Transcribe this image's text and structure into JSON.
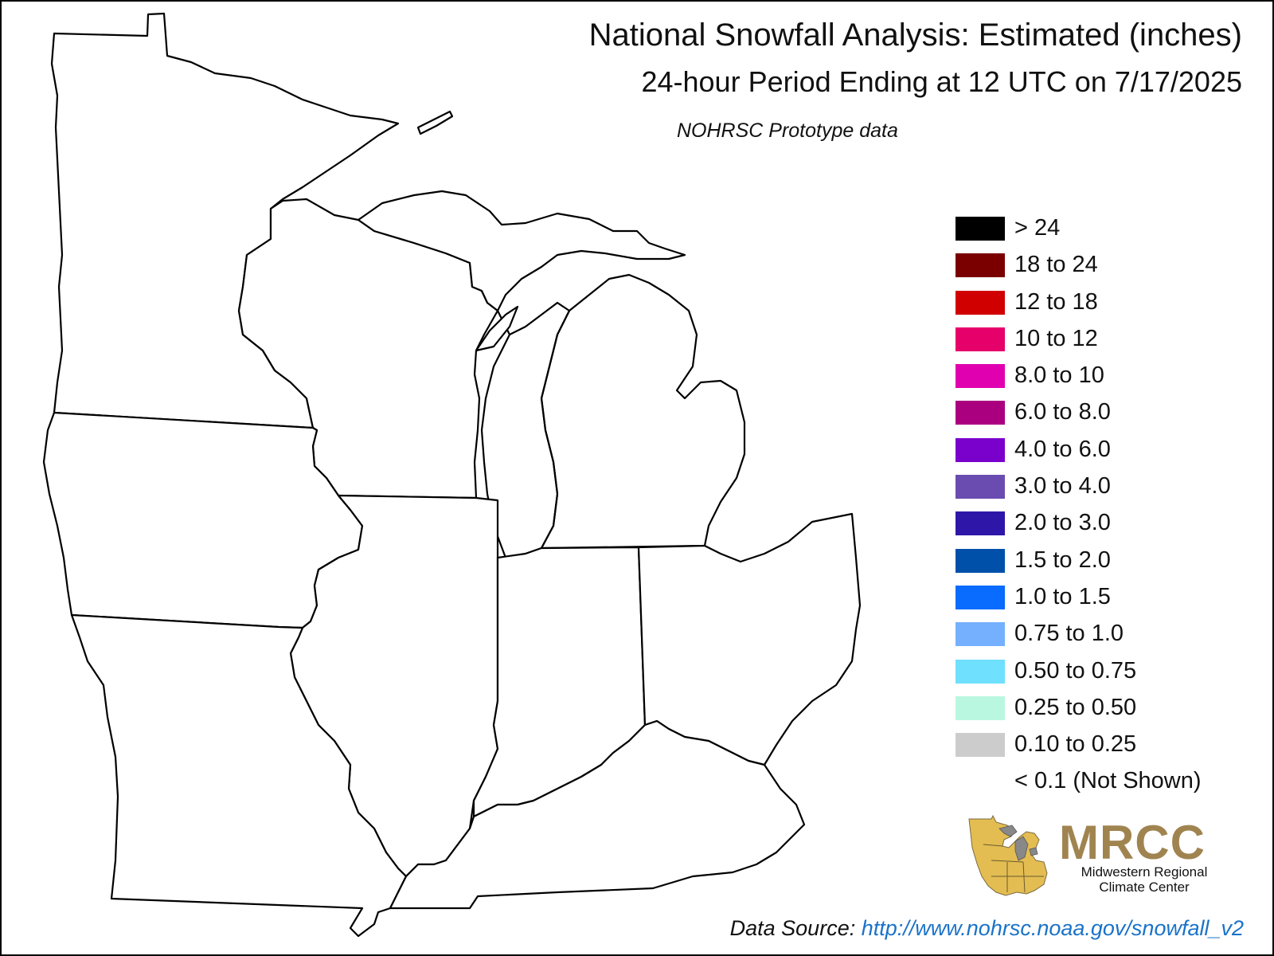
{
  "header": {
    "title": "National Snowfall Analysis: Estimated (inches)",
    "subtitle": "24-hour Period Ending at 12 UTC on 7/17/2025",
    "note": "NOHRSC Prototype data"
  },
  "map": {
    "states": [
      "Minnesota",
      "Wisconsin",
      "Michigan",
      "Iowa",
      "Illinois",
      "Indiana",
      "Ohio",
      "Missouri",
      "Kentucky"
    ],
    "fill_color": "#ffffff",
    "border_color": "#000000"
  },
  "legend": {
    "items": [
      {
        "label": "> 24",
        "color": "#000000"
      },
      {
        "label": "18 to 24",
        "color": "#7a0000"
      },
      {
        "label": "12 to 18",
        "color": "#d10000"
      },
      {
        "label": "10 to 12",
        "color": "#e6006a"
      },
      {
        "label": "8.0 to 10",
        "color": "#e000b0"
      },
      {
        "label": "6.0 to 8.0",
        "color": "#aa0080"
      },
      {
        "label": "4.0 to 6.0",
        "color": "#7a00cc"
      },
      {
        "label": "3.0 to 4.0",
        "color": "#6a4cb0"
      },
      {
        "label": "2.0 to 3.0",
        "color": "#2e17a8"
      },
      {
        "label": "1.5 to 2.0",
        "color": "#0050aa"
      },
      {
        "label": "1.0 to 1.5",
        "color": "#0a6bff"
      },
      {
        "label": "0.75 to 1.0",
        "color": "#75b0ff"
      },
      {
        "label": "0.50 to 0.75",
        "color": "#70e0ff"
      },
      {
        "label": "0.25 to 0.50",
        "color": "#baf7e0"
      },
      {
        "label": "0.10 to 0.25",
        "color": "#cccccc"
      },
      {
        "label": "< 0.1 (Not Shown)",
        "color": ""
      }
    ]
  },
  "logo": {
    "name": "MRCC",
    "line1": "Midwestern Regional",
    "line2": "Climate Center",
    "color": "#a08450"
  },
  "footer": {
    "source_label": "Data Source:",
    "source_url": "http://www.nohrsc.noaa.gov/snowfall_v2"
  }
}
